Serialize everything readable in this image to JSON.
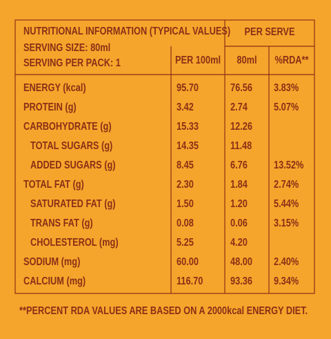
{
  "header": {
    "title": "NUTRITIONAL INFORMATION (TYPICAL VALUES)",
    "serving_size": "SERVING SIZE: 80ml",
    "servings_per_pack": "SERVING PER PACK: 1",
    "per_serve": "PER SERVE",
    "columns": [
      "PER 100ml",
      "80ml",
      "%RDA**"
    ]
  },
  "table": {
    "rows": [
      [
        "ENERGY (kcal)",
        "95.70",
        "76.56",
        "3.83%"
      ],
      [
        "PROTEIN (g)",
        "3.42",
        "2.74",
        "5.07%"
      ],
      [
        "CARBOHYDRATE (g)",
        "15.33",
        "12.26",
        null
      ],
      [
        "TOTAL SUGARS (g)",
        "14.35",
        "11.48",
        null
      ],
      [
        "ADDED SUGARS (g)",
        "8.45",
        "6.76",
        "13.52%"
      ],
      [
        "TOTAL FAT (g)",
        "2.30",
        "1.84",
        "2.74%"
      ],
      [
        "SATURATED FAT (g)",
        "1.50",
        "1.20",
        "5.44%"
      ],
      [
        "TRANS FAT (g)",
        "0.08",
        "0.06",
        "3.15%"
      ],
      [
        "CHOLESTEROL (mg)",
        "5.25",
        "4.20",
        null
      ],
      [
        "SODIUM (mg)",
        "60.00",
        "48.00",
        "2.40%"
      ],
      [
        "CALCIUM (mg)",
        "116.70",
        "93.36",
        "9.34%"
      ]
    ]
  },
  "footnote": "**PERCENT RDA VALUES ARE BASED ON A 2000kcal ENERGY DIET."
}
